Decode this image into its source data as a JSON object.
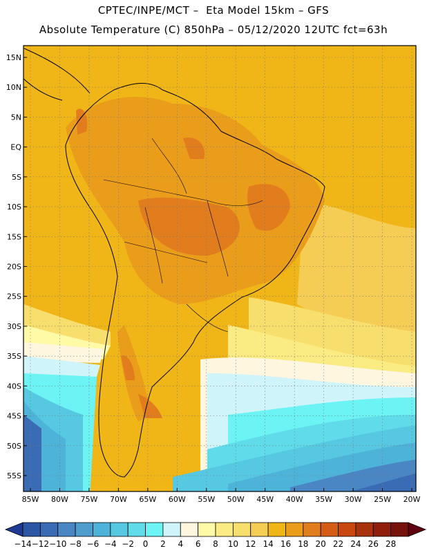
{
  "header": {
    "line1": "CPTEC/INPE/MCT –  Eta Model 15km – GFS",
    "line2": "Absolute Temperature (C) 850hPa – 05/12/2020 12UTC fct=63h"
  },
  "map": {
    "lat_labels": [
      "15N",
      "10N",
      "5N",
      "EQ",
      "5S",
      "10S",
      "15S",
      "20S",
      "25S",
      "30S",
      "35S",
      "40S",
      "45S",
      "50S",
      "55S"
    ],
    "lon_labels": [
      "85W",
      "80W",
      "75W",
      "70W",
      "65W",
      "60W",
      "55W",
      "50W",
      "45W",
      "40W",
      "35W",
      "30W",
      "25W",
      "20W"
    ]
  },
  "colorbar": {
    "labels": [
      "-14",
      "-12",
      "-10",
      "-8",
      "-6",
      "-4",
      "-2",
      "0",
      "2",
      "4",
      "6",
      "8",
      "10",
      "12",
      "14",
      "16",
      "18",
      "20",
      "22",
      "24",
      "26",
      "28"
    ],
    "colors": [
      "#1f3a93",
      "#2b55a5",
      "#3a6cb5",
      "#4a86c4",
      "#4f9dcc",
      "#4eb3d8",
      "#57c8e1",
      "#5fdbe9",
      "#6cf3f3",
      "#cff4fa",
      "#fff6e0",
      "#fffaa6",
      "#fbeb83",
      "#f8de6c",
      "#f5cd55",
      "#f0b618",
      "#ea9c1b",
      "#e27d1e",
      "#d55c14",
      "#c7470e",
      "#a8320b",
      "#8f1f0c",
      "#75120c",
      "#5f0010"
    ]
  }
}
